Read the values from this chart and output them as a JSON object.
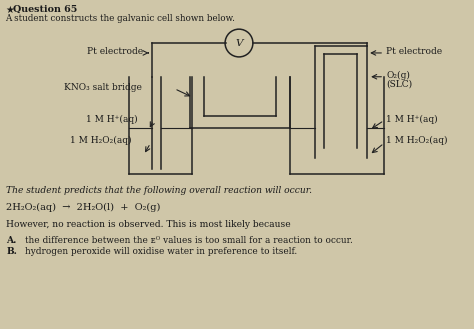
{
  "bg_color": "#cfc6a8",
  "font_color": "#1a1a1a",
  "line_color": "#222222",
  "title_question": "Question 65",
  "subtitle": "A student constructs the galvanic cell shown below.",
  "body1": "The student predicts that the following overall reaction will occur.",
  "reaction": "2H₂O₂(aq)  →  2H₂O(l)  +  O₂(g)",
  "body2": "However, no reaction is observed. This is most likely because",
  "answer_A": "the difference between the ᴇᴼ values is too small for a reaction to occur.",
  "answer_B": "hydrogen peroxide will oxidise water in preference to itself.",
  "label_pt_left": "Pt electrode",
  "label_kno3": "KNO₃ salt bridge",
  "label_h_left": "1 M H⁺(aq)",
  "label_h2o2_left": "1 M H₂O₂(aq)",
  "label_pt_right": "Pt electrode",
  "label_o2": "O₂(g)",
  "label_slc": "(SLC)",
  "label_h_right": "1 M H⁺(aq)",
  "label_h2o2_right": "1 M H₂O₂(aq)"
}
